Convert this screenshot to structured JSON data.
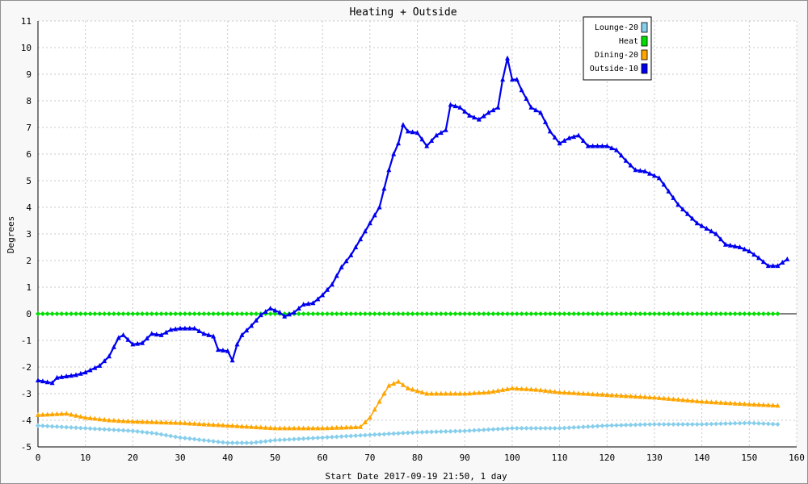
{
  "chart_data": {
    "type": "line",
    "title": "Heating + Outside",
    "xlabel": "Start Date 2017-09-19 21:50, 1 day",
    "ylabel": "Degrees",
    "xlim": [
      0,
      160
    ],
    "ylim": [
      -5,
      11
    ],
    "x_ticks": [
      0,
      10,
      20,
      30,
      40,
      50,
      60,
      70,
      80,
      90,
      100,
      110,
      120,
      130,
      140,
      150,
      160
    ],
    "y_ticks": [
      -5,
      -4,
      -3,
      -2,
      -1,
      0,
      1,
      2,
      3,
      4,
      5,
      6,
      7,
      8,
      9,
      10,
      11
    ],
    "grid": true,
    "legend_position": "top-right",
    "series": [
      {
        "name": "Lounge-20",
        "color": "#87ceeb",
        "marker": "diamond",
        "points": [
          [
            0,
            -4.2
          ],
          [
            10,
            -4.3
          ],
          [
            20,
            -4.4
          ],
          [
            25,
            -4.5
          ],
          [
            30,
            -4.65
          ],
          [
            40,
            -4.85
          ],
          [
            45,
            -4.85
          ],
          [
            50,
            -4.75
          ],
          [
            60,
            -4.65
          ],
          [
            70,
            -4.55
          ],
          [
            80,
            -4.45
          ],
          [
            90,
            -4.4
          ],
          [
            100,
            -4.3
          ],
          [
            110,
            -4.3
          ],
          [
            120,
            -4.2
          ],
          [
            130,
            -4.15
          ],
          [
            140,
            -4.15
          ],
          [
            150,
            -4.1
          ],
          [
            156,
            -4.15
          ]
        ]
      },
      {
        "name": "Heat",
        "color": "#00dd00",
        "marker": "diamond",
        "points": [
          [
            0,
            0
          ],
          [
            156,
            0
          ]
        ]
      },
      {
        "name": "Dining-20",
        "color": "#ffa500",
        "marker": "triangle",
        "points": [
          [
            0,
            -3.8
          ],
          [
            6,
            -3.75
          ],
          [
            10,
            -3.9
          ],
          [
            15,
            -4.0
          ],
          [
            20,
            -4.05
          ],
          [
            30,
            -4.1
          ],
          [
            40,
            -4.2
          ],
          [
            50,
            -4.3
          ],
          [
            60,
            -4.3
          ],
          [
            68,
            -4.25
          ],
          [
            70,
            -3.9
          ],
          [
            72,
            -3.3
          ],
          [
            74,
            -2.7
          ],
          [
            76,
            -2.55
          ],
          [
            78,
            -2.8
          ],
          [
            82,
            -3.0
          ],
          [
            86,
            -3.0
          ],
          [
            90,
            -3.0
          ],
          [
            95,
            -2.95
          ],
          [
            100,
            -2.8
          ],
          [
            105,
            -2.85
          ],
          [
            110,
            -2.95
          ],
          [
            120,
            -3.05
          ],
          [
            130,
            -3.15
          ],
          [
            140,
            -3.3
          ],
          [
            150,
            -3.4
          ],
          [
            156,
            -3.45
          ]
        ]
      },
      {
        "name": "Outside-10",
        "color": "#0000ee",
        "marker": "triangle",
        "points": [
          [
            0,
            -2.5
          ],
          [
            3,
            -2.6
          ],
          [
            4,
            -2.4
          ],
          [
            8,
            -2.3
          ],
          [
            10,
            -2.2
          ],
          [
            13,
            -1.95
          ],
          [
            15,
            -1.6
          ],
          [
            17,
            -0.9
          ],
          [
            18,
            -0.8
          ],
          [
            20,
            -1.15
          ],
          [
            22,
            -1.1
          ],
          [
            24,
            -0.75
          ],
          [
            26,
            -0.8
          ],
          [
            28,
            -0.6
          ],
          [
            30,
            -0.55
          ],
          [
            33,
            -0.55
          ],
          [
            35,
            -0.75
          ],
          [
            37,
            -0.85
          ],
          [
            38,
            -1.35
          ],
          [
            40,
            -1.4
          ],
          [
            41,
            -1.75
          ],
          [
            42,
            -1.15
          ],
          [
            43,
            -0.8
          ],
          [
            45,
            -0.45
          ],
          [
            47,
            -0.05
          ],
          [
            49,
            0.2
          ],
          [
            51,
            0.05
          ],
          [
            52,
            -0.1
          ],
          [
            54,
            0.05
          ],
          [
            56,
            0.35
          ],
          [
            58,
            0.4
          ],
          [
            60,
            0.7
          ],
          [
            62,
            1.1
          ],
          [
            64,
            1.75
          ],
          [
            66,
            2.2
          ],
          [
            68,
            2.8
          ],
          [
            70,
            3.4
          ],
          [
            72,
            4.0
          ],
          [
            74,
            5.4
          ],
          [
            75,
            6.0
          ],
          [
            76,
            6.4
          ],
          [
            77,
            7.1
          ],
          [
            78,
            6.85
          ],
          [
            80,
            6.8
          ],
          [
            81,
            6.55
          ],
          [
            82,
            6.3
          ],
          [
            84,
            6.7
          ],
          [
            86,
            6.9
          ],
          [
            87,
            7.85
          ],
          [
            89,
            7.75
          ],
          [
            91,
            7.45
          ],
          [
            93,
            7.3
          ],
          [
            95,
            7.55
          ],
          [
            97,
            7.75
          ],
          [
            98,
            8.8
          ],
          [
            99,
            9.6
          ],
          [
            100,
            8.8
          ],
          [
            101,
            8.8
          ],
          [
            102,
            8.4
          ],
          [
            104,
            7.75
          ],
          [
            106,
            7.55
          ],
          [
            108,
            6.85
          ],
          [
            110,
            6.4
          ],
          [
            112,
            6.6
          ],
          [
            114,
            6.7
          ],
          [
            116,
            6.3
          ],
          [
            120,
            6.3
          ],
          [
            122,
            6.15
          ],
          [
            124,
            5.75
          ],
          [
            126,
            5.4
          ],
          [
            128,
            5.35
          ],
          [
            131,
            5.1
          ],
          [
            133,
            4.6
          ],
          [
            135,
            4.1
          ],
          [
            137,
            3.75
          ],
          [
            139,
            3.4
          ],
          [
            141,
            3.2
          ],
          [
            143,
            3.0
          ],
          [
            145,
            2.6
          ],
          [
            148,
            2.5
          ],
          [
            150,
            2.35
          ],
          [
            152,
            2.1
          ],
          [
            154,
            1.8
          ],
          [
            156,
            1.8
          ],
          [
            158,
            2.05
          ]
        ]
      }
    ]
  }
}
